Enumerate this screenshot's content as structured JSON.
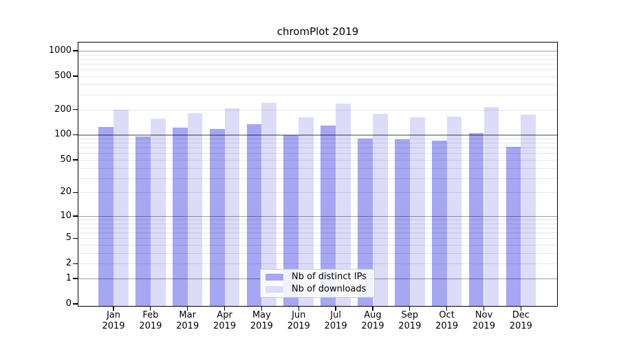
{
  "title": "chromPlot 2019",
  "chart_data": {
    "type": "bar",
    "title": "chromPlot 2019",
    "x_labels": [
      [
        "Jan",
        "2019"
      ],
      [
        "Feb",
        "2019"
      ],
      [
        "Mar",
        "2019"
      ],
      [
        "Apr",
        "2019"
      ],
      [
        "May",
        "2019"
      ],
      [
        "Jun",
        "2019"
      ],
      [
        "Jul",
        "2019"
      ],
      [
        "Aug",
        "2019"
      ],
      [
        "Sep",
        "2019"
      ],
      [
        "Oct",
        "2019"
      ],
      [
        "Nov",
        "2019"
      ],
      [
        "Dec",
        "2019"
      ]
    ],
    "series": [
      {
        "name": "Nb of distinct IPs",
        "key": "distinct-ips",
        "color": "#a6a6f2",
        "values": [
          125,
          95,
          122,
          118,
          134,
          99,
          129,
          90,
          89,
          85,
          105,
          72
        ]
      },
      {
        "name": "Nb of downloads",
        "key": "downloads",
        "color": "#dcdcf9",
        "values": [
          199,
          156,
          182,
          207,
          240,
          161,
          235,
          178,
          161,
          165,
          213,
          175
        ]
      }
    ],
    "y_axis": {
      "scale": "log1p",
      "tick_labels": [
        1000,
        500,
        200,
        100,
        50,
        20,
        10,
        5,
        2,
        1,
        0
      ],
      "major_gridlines": [
        1,
        10,
        100,
        1000
      ],
      "minor_gridlines": [
        2,
        3,
        4,
        5,
        6,
        7,
        8,
        9,
        20,
        30,
        40,
        50,
        60,
        70,
        80,
        90,
        200,
        300,
        400,
        500,
        600,
        700,
        800,
        900
      ],
      "range": [
        0,
        1100
      ]
    },
    "legend": {
      "position": "bottom-center",
      "entries": [
        "Nb of distinct IPs",
        "Nb of downloads"
      ]
    },
    "grid": true
  },
  "colors": {
    "background": "#ffffff",
    "bar_distinct_ips": "#a6a6f2",
    "bar_downloads": "#dcdcf9",
    "axis": "#000000",
    "gridline_major": "rgba(0,0,0,0.38)",
    "gridline_minor": "rgba(0,0,0,0.10)",
    "legend_border": "#c9c9c9"
  }
}
